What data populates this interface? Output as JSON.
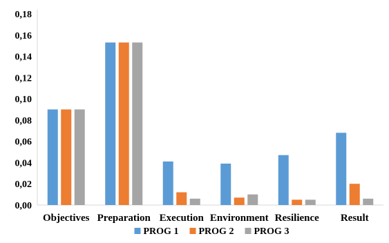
{
  "chart_data": {
    "type": "bar",
    "categories": [
      "Objectives",
      "Preparation",
      "Execution",
      "Environment",
      "Resilience",
      "Result"
    ],
    "series": [
      {
        "name": "PROG 1",
        "color": "#5b9bd5",
        "values": [
          0.09,
          0.153,
          0.041,
          0.039,
          0.047,
          0.068
        ]
      },
      {
        "name": "PROG 2",
        "color": "#ed7d31",
        "values": [
          0.09,
          0.153,
          0.012,
          0.007,
          0.005,
          0.02
        ]
      },
      {
        "name": "PROG 3",
        "color": "#a5a5a5",
        "values": [
          0.09,
          0.153,
          0.006,
          0.01,
          0.005,
          0.006
        ]
      }
    ],
    "ylim": [
      0,
      0.18
    ],
    "yticks": [
      "0,00",
      "0,02",
      "0,04",
      "0,06",
      "0,08",
      "0,10",
      "0,12",
      "0,14",
      "0,16",
      "0,18"
    ],
    "grid": false,
    "legend_position": "bottom",
    "xlabel": "",
    "ylabel": "",
    "title": ""
  }
}
